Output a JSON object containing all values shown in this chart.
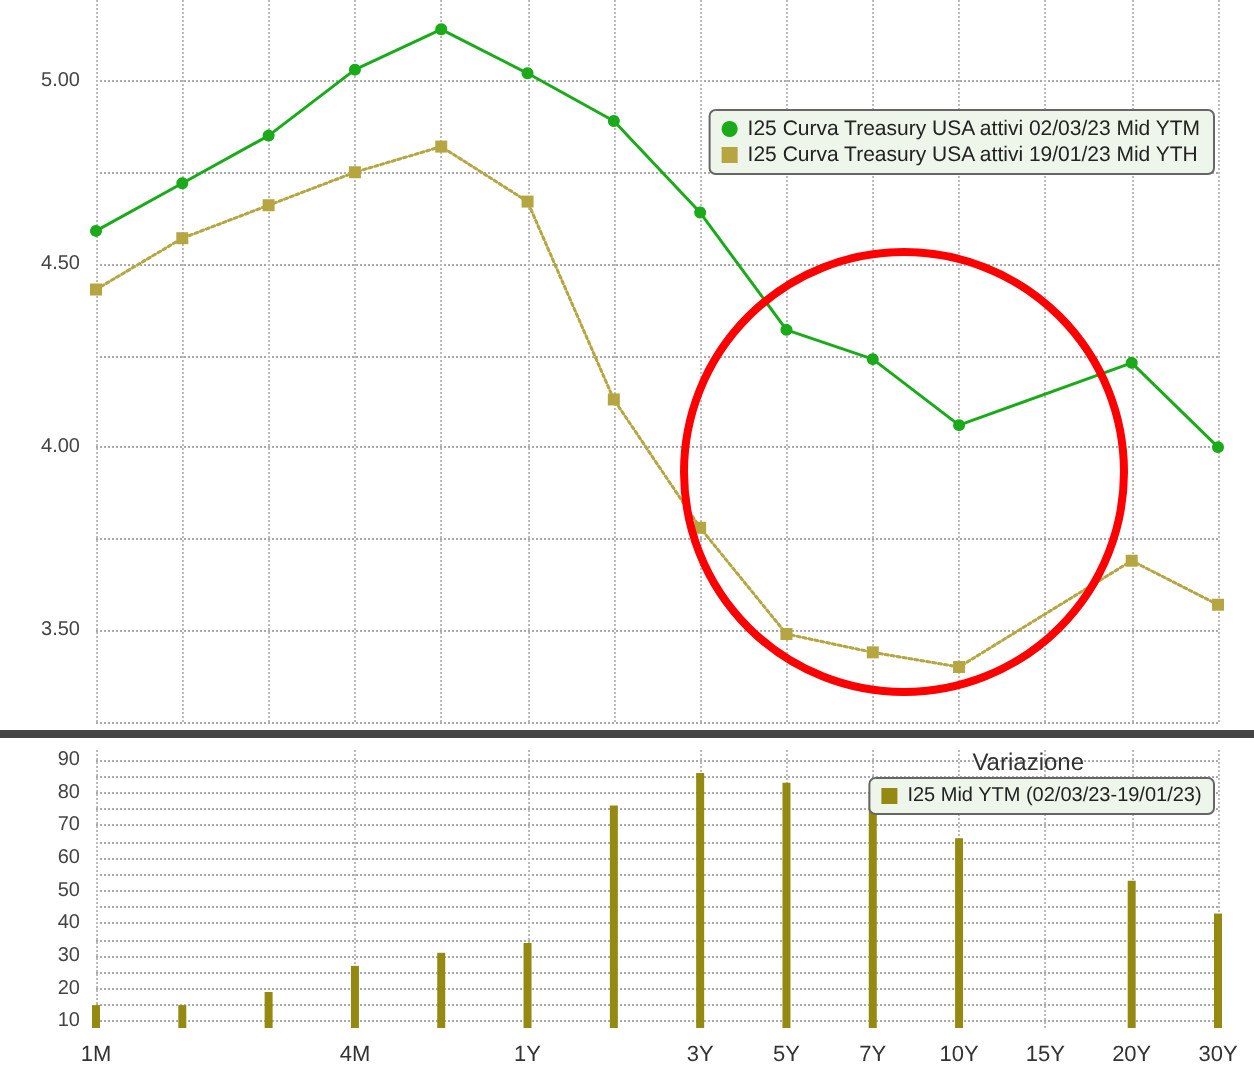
{
  "chart_data": [
    {
      "type": "line",
      "categories": [
        null,
        null,
        null,
        null,
        null,
        null,
        null,
        null,
        null,
        null,
        null,
        null,
        null,
        null
      ],
      "series": [
        {
          "name": "I25 Curva Treasury USA attivi 02/03/23 Mid YTM",
          "color": "#1aaa1a",
          "marker": "circle",
          "line_style": "solid",
          "values": [
            4.59,
            4.72,
            4.85,
            5.03,
            5.14,
            5.02,
            4.89,
            4.64,
            4.32,
            4.24,
            4.06,
            null,
            4.23,
            4.0
          ]
        },
        {
          "name": "I25 Curva Treasury USA attivi 19/01/23 Mid YTH",
          "color": "#b5a642",
          "marker": "square",
          "line_style": "dotted",
          "values": [
            4.43,
            4.57,
            4.66,
            4.75,
            4.82,
            4.67,
            4.13,
            3.78,
            3.49,
            3.44,
            3.4,
            null,
            3.69,
            3.57
          ]
        }
      ],
      "ylim": [
        3.25,
        5.22
      ],
      "yticks": [
        {
          "value": 3.25,
          "label": null
        },
        {
          "value": 3.5,
          "label": "3.50"
        },
        {
          "value": 3.75,
          "label": null
        },
        {
          "value": 4,
          "label": "4.00"
        },
        {
          "value": 4.25,
          "label": null
        },
        {
          "value": 4.5,
          "label": "4.50"
        },
        {
          "value": 4.75,
          "label": null
        },
        {
          "value": 5,
          "label": "5.00"
        }
      ],
      "grid": true,
      "legend": "top right",
      "tick_labels": "y"
    },
    {
      "type": "bar",
      "categories": [
        "1M",
        null,
        null,
        "4M",
        null,
        "1Y",
        null,
        "3Y",
        "5Y",
        "7Y",
        "10Y",
        "15Y",
        "20Y",
        "30Y"
      ],
      "legend_title": "Variazione",
      "series": [
        {
          "name": "I25 Mid YTM (02/03/23-19/01/23)",
          "color": "#948a12",
          "values": [
            15,
            15,
            19,
            27,
            31,
            34,
            76,
            86,
            83,
            80,
            66,
            null,
            53,
            43
          ]
        }
      ],
      "ylim": [
        8,
        93
      ],
      "yticks": [
        10,
        {
          "value": 15,
          "label": null
        },
        20,
        {
          "value": 25,
          "label": null
        },
        30,
        {
          "value": 35,
          "label": null
        },
        40,
        {
          "value": 45,
          "label": null
        },
        50,
        {
          "value": 55,
          "label": null
        },
        60,
        {
          "value": 65,
          "label": null
        },
        70,
        {
          "value": 75,
          "label": null
        },
        80,
        {
          "value": 85,
          "label": null
        },
        90
      ],
      "grid": true,
      "legend": "top right"
    }
  ]
}
